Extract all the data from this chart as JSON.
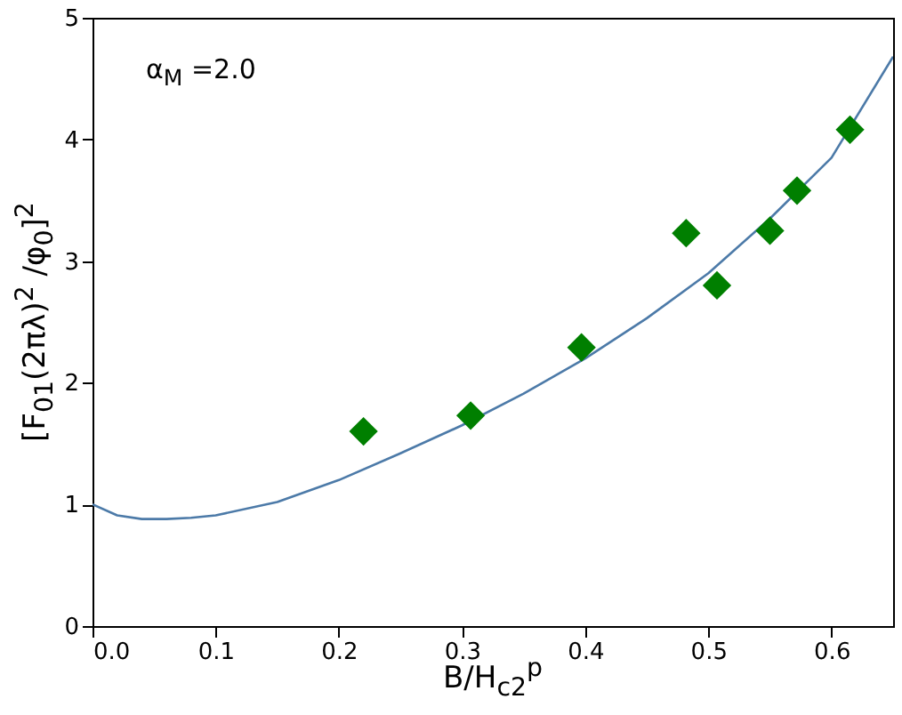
{
  "chart_data": {
    "type": "scatter",
    "xlabel": "B/H$_{c2}$$^{p}$",
    "ylabel": "[F$_{01}$(2πλ)$^{2}$ /φ$_{0}$]$^{2}$",
    "annotations": [
      "α$_{M}$ =2.0"
    ],
    "xlim": [
      0,
      0.65
    ],
    "ylim": [
      0,
      5
    ],
    "xticks": [
      {
        "value": 0,
        "label": "0.0"
      },
      0.1,
      0.2,
      0.3,
      0.4,
      0.5,
      0.6
    ],
    "yticks": [
      0,
      1,
      2,
      3,
      4,
      5
    ],
    "grid": false,
    "series": [
      {
        "type": "line",
        "color": "#4c7aa8",
        "x": [
          0,
          0.02,
          0.04,
          0.06,
          0.08,
          0.1,
          0.15,
          0.2,
          0.25,
          0.3,
          0.35,
          0.4,
          0.45,
          0.5,
          0.55,
          0.6,
          0.65
        ],
        "values": [
          1.0,
          0.91,
          0.88,
          0.88,
          0.89,
          0.91,
          1.02,
          1.2,
          1.42,
          1.65,
          1.91,
          2.2,
          2.53,
          2.9,
          3.35,
          3.85,
          4.68
        ]
      },
      {
        "color": "#007f00",
        "marker": "diamond",
        "x": [
          0.22,
          0.307,
          0.397,
          0.482,
          0.507,
          0.55,
          0.572,
          0.615
        ],
        "values": [
          1.6,
          1.73,
          2.29,
          3.23,
          2.8,
          3.25,
          3.58,
          4.08
        ]
      }
    ]
  }
}
